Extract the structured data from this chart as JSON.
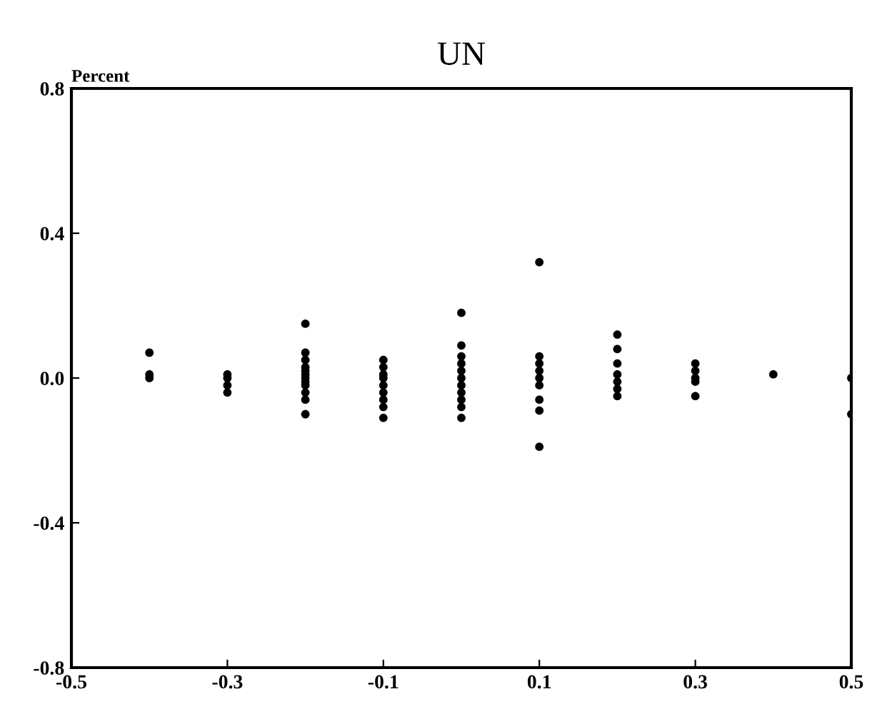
{
  "chart_data": {
    "type": "scatter",
    "title": "UN",
    "ylabel": "Percent",
    "x": [
      -0.4,
      -0.4,
      -0.4,
      -0.3,
      -0.3,
      -0.3,
      -0.3,
      -0.2,
      -0.2,
      -0.2,
      -0.2,
      -0.2,
      -0.2,
      -0.2,
      -0.2,
      -0.2,
      -0.2,
      -0.2,
      -0.2,
      -0.1,
      -0.1,
      -0.1,
      -0.1,
      -0.1,
      -0.1,
      -0.1,
      -0.1,
      -0.1,
      0.0,
      0.0,
      0.0,
      0.0,
      0.0,
      0.0,
      0.0,
      0.0,
      0.0,
      0.0,
      0.0,
      0.1,
      0.1,
      0.1,
      0.1,
      0.1,
      0.1,
      0.1,
      0.1,
      0.1,
      0.2,
      0.2,
      0.2,
      0.2,
      0.2,
      0.2,
      0.2,
      0.3,
      0.3,
      0.3,
      0.3,
      0.3,
      0.4,
      0.5,
      0.5
    ],
    "values": [
      0.07,
      0.0,
      0.01,
      0.01,
      0.0,
      -0.02,
      -0.04,
      0.15,
      0.07,
      0.05,
      0.03,
      0.02,
      0.01,
      0.0,
      -0.01,
      -0.02,
      -0.04,
      -0.06,
      -0.1,
      0.05,
      0.03,
      0.01,
      0.0,
      -0.02,
      -0.04,
      -0.06,
      -0.08,
      -0.11,
      0.18,
      0.09,
      0.06,
      0.04,
      0.02,
      0.0,
      -0.02,
      -0.04,
      -0.06,
      -0.08,
      -0.11,
      0.32,
      0.06,
      0.04,
      0.02,
      0.0,
      -0.02,
      -0.06,
      -0.09,
      -0.19,
      0.12,
      0.08,
      0.04,
      0.01,
      -0.01,
      -0.03,
      -0.05,
      0.04,
      0.02,
      0.0,
      -0.01,
      -0.05,
      0.01,
      0.0,
      -0.1
    ],
    "color": "#000000",
    "marker": "circle",
    "xlim": [
      -0.5,
      0.5
    ],
    "xticks": [
      -0.5,
      -0.3,
      -0.1,
      0.1,
      0.3,
      0.5
    ],
    "ylim": [
      -0.8,
      0.8
    ],
    "yticks": [
      {
        "value": 0.8,
        "label": "0.8"
      },
      {
        "value": 0.4,
        "label": "0.4"
      },
      {
        "value": 0,
        "label": "0.0"
      },
      {
        "value": -0.4,
        "label": "-0.4"
      },
      {
        "value": -0.8,
        "label": "-0.8"
      }
    ],
    "grid": false
  }
}
